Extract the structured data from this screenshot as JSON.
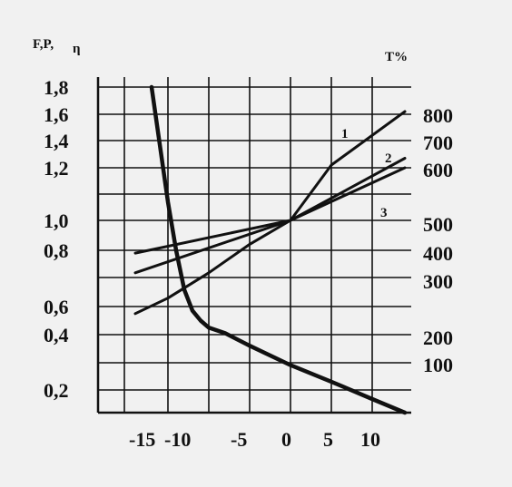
{
  "chart_data": {
    "type": "line",
    "y_left_label": "F,P,",
    "y_left_symbol": "η",
    "y_right_label": "T%",
    "x_ticks": [
      "-15",
      "-10",
      "-5",
      "0",
      "5",
      "10"
    ],
    "y_left_ticks": [
      "1,8",
      "1,6",
      "1,4",
      "1,2",
      "1,0",
      "0,8",
      "0,6",
      "0,4",
      "0,2"
    ],
    "y_right_ticks": [
      "800",
      "700",
      "600",
      "500",
      "400",
      "300",
      "200",
      "100"
    ],
    "grid": true,
    "series": [
      {
        "name": "1",
        "x": [
          -19,
          -15,
          -10,
          -5,
          0,
          5,
          14
        ],
        "y": [
          0.55,
          0.63,
          0.72,
          0.84,
          1.0,
          1.22,
          1.62
        ]
      },
      {
        "name": "2",
        "x": [
          -19,
          0,
          14
        ],
        "y": [
          0.72,
          1.0,
          1.27
        ]
      },
      {
        "name": "3",
        "x": [
          -19,
          0,
          14
        ],
        "y": [
          0.79,
          1.0,
          1.2
        ]
      },
      {
        "x": [
          -17,
          -15,
          -14,
          -13,
          -12,
          -11,
          -10,
          -8,
          -5,
          0,
          5,
          10,
          14
        ],
        "y": [
          1.8,
          1.07,
          0.8,
          0.66,
          0.57,
          0.5,
          0.45,
          0.41,
          0.36,
          0.29,
          0.23,
          0.16,
          0.1
        ]
      }
    ]
  }
}
